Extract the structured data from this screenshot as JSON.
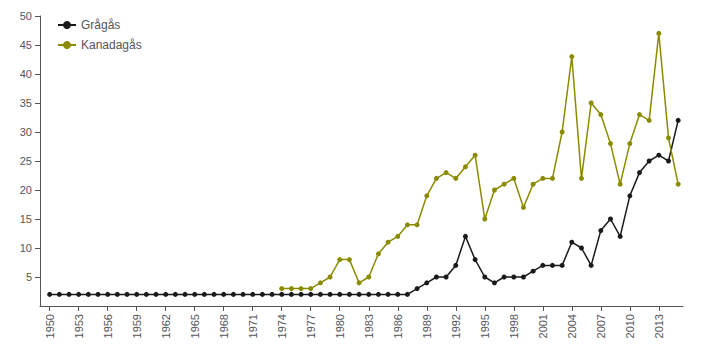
{
  "chart_data": {
    "type": "line",
    "series": [
      {
        "name": "Grågås",
        "color": "#1a1a1a",
        "marker": "circle",
        "x": [
          1950,
          1951,
          1952,
          1953,
          1954,
          1955,
          1956,
          1957,
          1958,
          1959,
          1960,
          1961,
          1962,
          1963,
          1964,
          1965,
          1966,
          1967,
          1968,
          1969,
          1970,
          1971,
          1972,
          1973,
          1974,
          1975,
          1976,
          1977,
          1978,
          1979,
          1980,
          1981,
          1982,
          1983,
          1984,
          1985,
          1986,
          1987,
          1988,
          1989,
          1990,
          1991,
          1992,
          1993,
          1994,
          1995,
          1996,
          1997,
          1998,
          1999,
          2000,
          2001,
          2002,
          2003,
          2004,
          2005,
          2006,
          2007,
          2008,
          2009,
          2010,
          2011,
          2012,
          2013,
          2014,
          2015
        ],
        "values": [
          2,
          2,
          2,
          2,
          2,
          2,
          2,
          2,
          2,
          2,
          2,
          2,
          2,
          2,
          2,
          2,
          2,
          2,
          2,
          2,
          2,
          2,
          2,
          2,
          2,
          2,
          2,
          2,
          2,
          2,
          2,
          2,
          2,
          2,
          2,
          2,
          2,
          2,
          3,
          4,
          5,
          5,
          7,
          12,
          8,
          5,
          4,
          5,
          5,
          5,
          6,
          7,
          7,
          7,
          11,
          10,
          7,
          13,
          15,
          12,
          19,
          23,
          25,
          26,
          25,
          32
        ]
      },
      {
        "name": "Kanadagås",
        "color": "#8b8b00",
        "marker": "circle",
        "x": [
          1974,
          1975,
          1976,
          1977,
          1978,
          1979,
          1980,
          1981,
          1982,
          1983,
          1984,
          1985,
          1986,
          1987,
          1988,
          1989,
          1990,
          1991,
          1992,
          1993,
          1994,
          1995,
          1996,
          1997,
          1998,
          1999,
          2000,
          2001,
          2002,
          2003,
          2004,
          2005,
          2006,
          2007,
          2008,
          2009,
          2010,
          2011,
          2012,
          2013,
          2014,
          2015
        ],
        "values": [
          3,
          3,
          3,
          3,
          4,
          5,
          8,
          8,
          4,
          5,
          9,
          11,
          12,
          14,
          14,
          19,
          22,
          23,
          22,
          24,
          26,
          15,
          20,
          21,
          22,
          17,
          21,
          22,
          22,
          30,
          43,
          22,
          35,
          33,
          28,
          21,
          28,
          33,
          32,
          47,
          29,
          21
        ]
      }
    ],
    "xlim": [
      1949,
      2015.5
    ],
    "xticks": [
      1950,
      1953,
      1956,
      1959,
      1962,
      1965,
      1968,
      1971,
      1974,
      1977,
      1980,
      1983,
      1986,
      1989,
      1992,
      1995,
      1998,
      2001,
      2004,
      2007,
      2010,
      2013
    ],
    "ylim": [
      0,
      50
    ],
    "yticks": [
      5,
      10,
      15,
      20,
      25,
      30,
      35,
      40,
      45,
      50
    ],
    "grid": false,
    "legend": "upper left"
  }
}
